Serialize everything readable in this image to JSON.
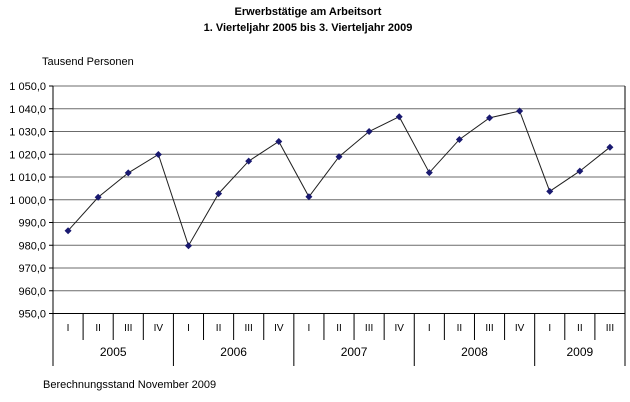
{
  "colors": {
    "background": "#ffffff",
    "text": "#000000",
    "grid": "#6b6b6b",
    "axis": "#000000",
    "series_line": "#1f1f1f",
    "marker": "#191970"
  },
  "chart_data": {
    "type": "line",
    "title": "Erwerbstätige am Arbeitsort",
    "subtitle": "1. Vierteljahr 2005 bis 3. Vierteljahr 2009",
    "ylabel": "Tausend Personen",
    "footer": "Berechnungsstand November 2009",
    "ylim": [
      950,
      1050
    ],
    "ytick_step": 10,
    "ytick_labels": [
      "1 050,0",
      "1 040,0",
      "1 030,0",
      "1 020,0",
      "1 010,0",
      "1 000,0",
      "990,0",
      "980,0",
      "970,0",
      "960,0",
      "950,0"
    ],
    "grid": true,
    "legend": false,
    "marker": "diamond",
    "groups": [
      {
        "year": "2005",
        "quarters": [
          "I",
          "II",
          "III",
          "IV"
        ],
        "values": [
          986.4,
          1001.1,
          1011.8,
          1019.9
        ]
      },
      {
        "year": "2006",
        "quarters": [
          "I",
          "II",
          "III",
          "IV"
        ],
        "values": [
          979.8,
          1002.7,
          1017.0,
          1025.6
        ]
      },
      {
        "year": "2007",
        "quarters": [
          "I",
          "II",
          "III",
          "IV"
        ],
        "values": [
          1001.3,
          1018.9,
          1030.0,
          1036.5
        ]
      },
      {
        "year": "2008",
        "quarters": [
          "I",
          "II",
          "III",
          "IV"
        ],
        "values": [
          1011.9,
          1026.5,
          1036.0,
          1039.0
        ]
      },
      {
        "year": "2009",
        "quarters": [
          "I",
          "II",
          "III"
        ],
        "values": [
          1003.7,
          1012.6,
          1023.1
        ]
      }
    ]
  }
}
